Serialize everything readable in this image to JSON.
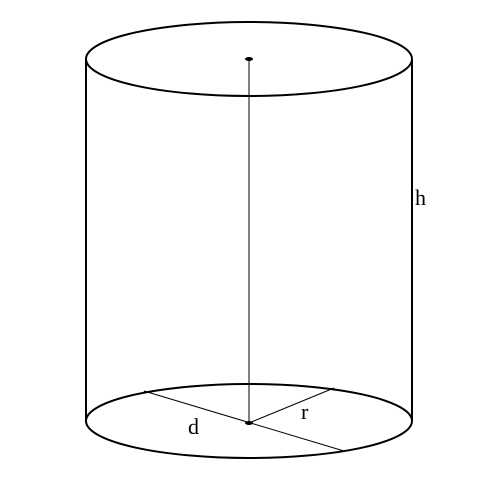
{
  "diagram": {
    "labels": {
      "height": "h",
      "radius": "r",
      "diameter": "d"
    },
    "stroke_color": "#000000",
    "background_color": "#ffffff"
  }
}
